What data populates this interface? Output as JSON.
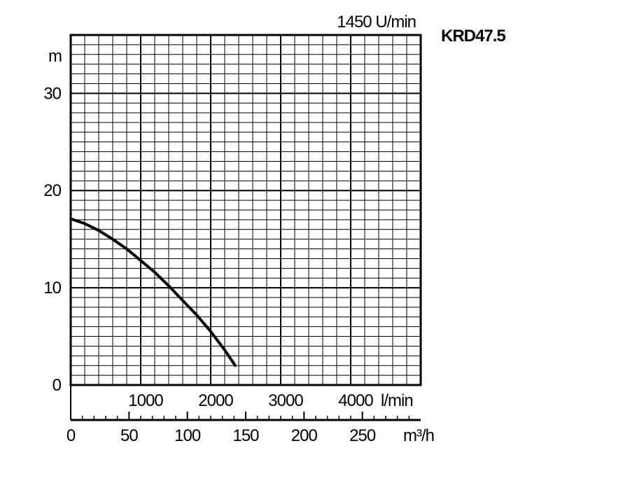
{
  "chart_data": {
    "type": "line",
    "model": "KRD47.5",
    "speed_label": "1450 U/min",
    "y_unit": "m",
    "ylim": [
      0,
      36
    ],
    "y_ticks": [
      0,
      10,
      20,
      30
    ],
    "x_lmin": {
      "range": [
        0,
        5000
      ],
      "ticks": [
        1000,
        2000,
        3000,
        4000
      ],
      "unit": "l/min"
    },
    "x_m3h": {
      "range": [
        0,
        300
      ],
      "ticks": [
        0,
        50,
        100,
        150,
        200,
        250
      ],
      "unit": "m³/h"
    },
    "grid": true,
    "series": [
      {
        "values_x_lmin": [
          0,
          200,
          400,
          600,
          800,
          1000,
          1200,
          1400,
          1600,
          1800,
          2000,
          2200,
          2350
        ],
        "values_y_m": [
          17.1,
          16.6,
          15.9,
          15.0,
          14.0,
          12.8,
          11.6,
          10.2,
          8.7,
          7.2,
          5.5,
          3.6,
          2.0
        ]
      }
    ]
  }
}
